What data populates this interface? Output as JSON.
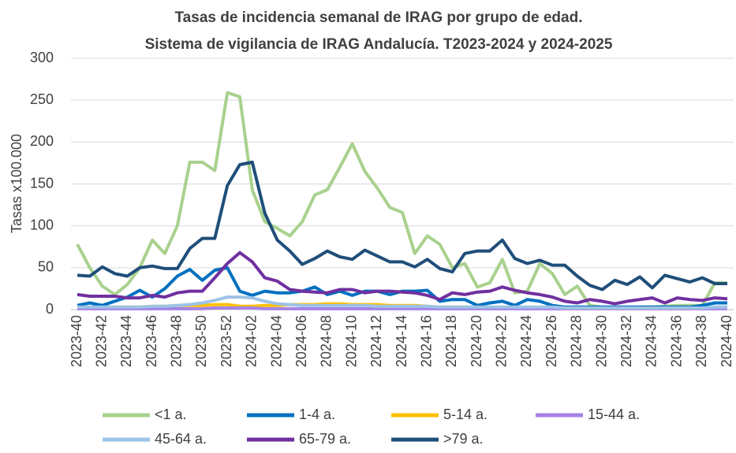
{
  "chart_data": {
    "type": "line",
    "title": "Tasas de incidencia semanal de IRAG por grupo de edad.",
    "subtitle": "Sistema de vigilancia de IRAG Andalucía. T2023-2024 y 2024-2025",
    "y_label": "Tasas x100.000",
    "categories": [
      "2023-40",
      null,
      "2023-42",
      null,
      "2023-44",
      null,
      "2023-46",
      null,
      "2023-48",
      null,
      "2023-50",
      null,
      "2023-52",
      null,
      "2024-02",
      null,
      "2024-04",
      null,
      "2024-06",
      null,
      "2024-08",
      null,
      "2024-10",
      null,
      "2024-12",
      null,
      "2024-14",
      null,
      "2024-16",
      null,
      "2024-18",
      null,
      "2024-20",
      null,
      "2024-22",
      null,
      "2024-24",
      null,
      "2024-26",
      null,
      "2024-28",
      null,
      "2024-30",
      null,
      "2024-32",
      null,
      "2024-34",
      null,
      "2024-36",
      null,
      "2024-38",
      null,
      "2024-40"
    ],
    "ylim": [
      0,
      300
    ],
    "yticks": [
      0,
      50,
      100,
      150,
      200,
      250,
      300
    ],
    "grid": true,
    "series": [
      {
        "name": "<1 a.",
        "color": "#a9d18e",
        "values": [
          78,
          50,
          28,
          18,
          30,
          50,
          83,
          67,
          100,
          176,
          176,
          166,
          259,
          254,
          143,
          105,
          97,
          88,
          105,
          137,
          143,
          170,
          198,
          165,
          145,
          122,
          116,
          67,
          88,
          78,
          50,
          55,
          27,
          32,
          60,
          20,
          22,
          55,
          43,
          18,
          28,
          5,
          3,
          2,
          2,
          3,
          3,
          4,
          5,
          5,
          5,
          32,
          32
        ]
      },
      {
        "name": "1-4 a.",
        "color": "#0070c0",
        "values": [
          5,
          8,
          5,
          10,
          15,
          23,
          15,
          25,
          40,
          48,
          35,
          47,
          50,
          22,
          17,
          22,
          20,
          20,
          22,
          27,
          18,
          22,
          17,
          22,
          22,
          18,
          22,
          22,
          23,
          10,
          12,
          12,
          5,
          8,
          10,
          5,
          12,
          10,
          5,
          3,
          3,
          3,
          3,
          3,
          3,
          3,
          3,
          3,
          3,
          3,
          5,
          8,
          8
        ]
      },
      {
        "name": "5-14 a.",
        "color": "#ffc000",
        "values": [
          2,
          2,
          2,
          3,
          3,
          3,
          4,
          4,
          5,
          5,
          5,
          6,
          6,
          4,
          4,
          5,
          5,
          6,
          6,
          6,
          7,
          7,
          6,
          6,
          6,
          5,
          5,
          5,
          4,
          3,
          3,
          3,
          2,
          2,
          2,
          2,
          2,
          2,
          2,
          1,
          1,
          1,
          1,
          1,
          1,
          1,
          1,
          1,
          1,
          1,
          1,
          2,
          2
        ]
      },
      {
        "name": "15-44 a.",
        "color": "#a583e6",
        "values": [
          1,
          1,
          1,
          1,
          1,
          1,
          1,
          1,
          1,
          1,
          1,
          2,
          2,
          2,
          2,
          1,
          1,
          1,
          1,
          1,
          1,
          1,
          1,
          1,
          1,
          1,
          1,
          1,
          1,
          1,
          1,
          1,
          1,
          1,
          1,
          1,
          1,
          1,
          1,
          1,
          1,
          1,
          1,
          1,
          1,
          1,
          1,
          1,
          1,
          1,
          1,
          1,
          1
        ]
      },
      {
        "name": "45-64 a.",
        "color": "#9dc3e6",
        "values": [
          3,
          3,
          3,
          3,
          3,
          3,
          4,
          4,
          5,
          6,
          8,
          11,
          15,
          15,
          14,
          10,
          7,
          6,
          5,
          5,
          5,
          5,
          5,
          5,
          4,
          4,
          4,
          4,
          4,
          3,
          3,
          3,
          3,
          3,
          3,
          3,
          3,
          3,
          3,
          2,
          2,
          2,
          2,
          2,
          2,
          2,
          2,
          2,
          2,
          2,
          2,
          3,
          3
        ]
      },
      {
        "name": "65-79 a.",
        "color": "#7030a0",
        "values": [
          18,
          16,
          16,
          16,
          14,
          14,
          17,
          15,
          20,
          22,
          22,
          38,
          55,
          68,
          57,
          38,
          34,
          24,
          22,
          21,
          20,
          24,
          24,
          20,
          22,
          22,
          21,
          20,
          17,
          12,
          20,
          18,
          21,
          22,
          27,
          23,
          20,
          18,
          15,
          10,
          8,
          12,
          10,
          7,
          10,
          12,
          14,
          8,
          14,
          12,
          11,
          14,
          13
        ]
      },
      {
        "name": ">79 a.",
        "color": "#1f4e79",
        "values": [
          41,
          40,
          51,
          43,
          40,
          50,
          52,
          49,
          49,
          73,
          85,
          85,
          148,
          173,
          176,
          115,
          83,
          70,
          54,
          61,
          70,
          63,
          60,
          71,
          64,
          57,
          57,
          51,
          60,
          49,
          45,
          67,
          70,
          70,
          83,
          61,
          55,
          59,
          53,
          53,
          40,
          29,
          24,
          35,
          30,
          39,
          26,
          41,
          37,
          33,
          38,
          31,
          31
        ]
      }
    ]
  }
}
